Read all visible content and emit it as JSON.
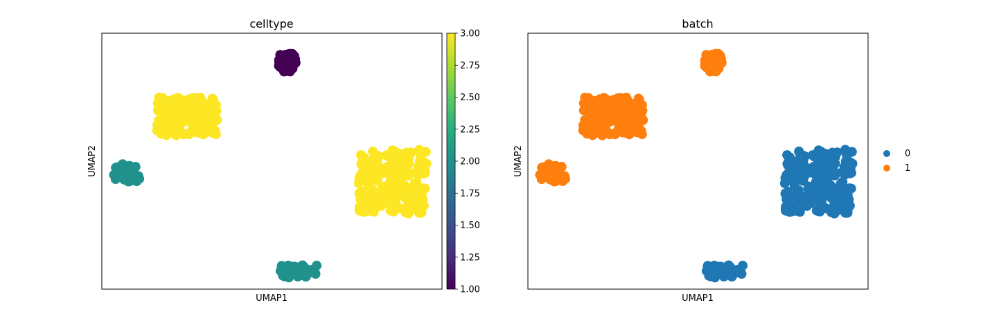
{
  "chart_data": [
    {
      "type": "scatter",
      "title": "celltype",
      "xlabel": "UMAP1",
      "ylabel": "UMAP2",
      "xlim": [
        0,
        100
      ],
      "ylim": [
        0,
        100
      ],
      "color_by": "continuous",
      "colormap": "viridis",
      "colorbar": {
        "range": [
          1.0,
          3.0
        ],
        "ticks": [
          "1.00",
          "1.25",
          "1.50",
          "1.75",
          "2.00",
          "2.25",
          "2.50",
          "2.75",
          "3.00"
        ]
      },
      "clusters": [
        {
          "center": [
            54.5,
            88.5
          ],
          "spread": [
            5.0,
            7.0
          ],
          "n": 80,
          "value": 1.0,
          "batch": "1",
          "split": {
            "batch": "0",
            "x_above": 57
          }
        },
        {
          "center": [
            25.0,
            67.5
          ],
          "spread": [
            18.0,
            15.0
          ],
          "n": 160,
          "value": 3.0,
          "batch": "1"
        },
        {
          "center": [
            7.5,
            45.5
          ],
          "spread": [
            8.0,
            7.0
          ],
          "n": 30,
          "value": 2.0,
          "batch": "1"
        },
        {
          "center": [
            85.5,
            42.0
          ],
          "spread": [
            20.0,
            25.0
          ],
          "n": 220,
          "value": 3.0,
          "batch": "0"
        },
        {
          "center": [
            58.0,
            7.0
          ],
          "spread": [
            11.0,
            5.0
          ],
          "n": 50,
          "value": 2.0,
          "batch": "0"
        }
      ]
    },
    {
      "type": "scatter",
      "title": "batch",
      "xlabel": "UMAP1",
      "ylabel": "UMAP2",
      "xlim": [
        0,
        100
      ],
      "ylim": [
        0,
        100
      ],
      "color_by": "categorical",
      "legend": {
        "placement": "right",
        "entries": [
          {
            "label": "0",
            "color": "#1f77b4"
          },
          {
            "label": "1",
            "color": "#ff7f0e"
          }
        ]
      }
    }
  ],
  "colors": {
    "batch_0": "#1f77b4",
    "batch_1": "#ff7f0e",
    "viridis_low": "#440154",
    "viridis_mid": "#21918c",
    "viridis_high": "#fde725"
  }
}
